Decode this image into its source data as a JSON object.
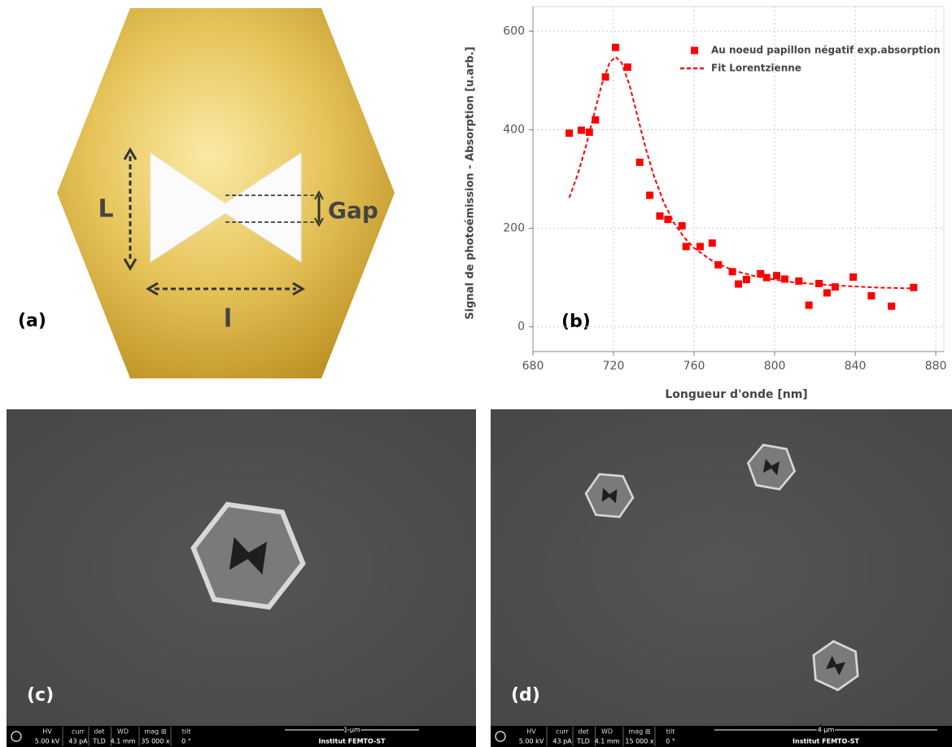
{
  "panel_a": {
    "label": "(a)",
    "length_label": "L",
    "width_label": "l",
    "gap_label": "Gap"
  },
  "chart_data": {
    "type": "scatter",
    "panel_label": "(b)",
    "x_label": "Longueur d'onde [nm]",
    "y_label": "Signal de photoémission - Absorption [u.arb.]",
    "xlim": [
      680,
      884
    ],
    "ylim": [
      -50,
      650
    ],
    "xticks": [
      680,
      720,
      760,
      800,
      840,
      880
    ],
    "yticks": [
      0,
      200,
      400,
      600
    ],
    "grid": true,
    "legend": "top-right",
    "series": [
      {
        "name": "Au noeud papillon négatif exp.absorption",
        "color": "#ff0000",
        "marker": "square",
        "x": [
          698,
          704,
          708,
          711,
          716,
          721,
          727,
          733,
          738,
          743,
          747,
          754,
          756,
          763,
          769,
          772,
          779,
          782,
          786,
          793,
          796,
          801,
          805,
          812,
          817,
          822,
          826,
          830,
          839,
          848,
          858,
          869
        ],
        "values": [
          393,
          399,
          395,
          420,
          507,
          567,
          527,
          334,
          267,
          225,
          218,
          205,
          163,
          163,
          170,
          126,
          112,
          87,
          96,
          108,
          100,
          104,
          97,
          93,
          44,
          88,
          69,
          81,
          101,
          63,
          42,
          80
        ]
      },
      {
        "name": "Fit Lorentzienne",
        "color": "#ff0000",
        "line_style": "dashed",
        "x": [
          698,
          702,
          706,
          710,
          714,
          718,
          721,
          724,
          728,
          732,
          736,
          740,
          745,
          750,
          755,
          760,
          770,
          780,
          790,
          800,
          810,
          820,
          830,
          840,
          850,
          860,
          869
        ],
        "values": [
          262,
          307,
          362,
          426,
          490,
          536,
          548,
          536,
          490,
          426,
          362,
          307,
          252,
          211,
          182,
          160,
          131,
          114,
          103,
          96,
          90,
          87,
          84,
          82,
          80,
          79,
          78
        ]
      }
    ]
  },
  "sem_images": [
    {
      "label": "(c)",
      "info_headers": [
        "HV",
        "curr",
        "det",
        "WD",
        "mag ⊞",
        "tilt"
      ],
      "info_values": [
        "5.00 kV",
        "43 pA",
        "TLD",
        "4.1 mm",
        "35 000 x",
        "0 °"
      ],
      "scale_bar": "1 μm",
      "institute": "Institut FEMTO-ST"
    },
    {
      "label": "(d)",
      "info_headers": [
        "HV",
        "curr",
        "det",
        "WD",
        "mag ⊞",
        "tilt"
      ],
      "info_values": [
        "5.00 kV",
        "43 pA",
        "TLD",
        "4.1 mm",
        "15 000 x",
        "0 °"
      ],
      "scale_bar": "4 μm",
      "institute": "Institut FEMTO-ST"
    }
  ]
}
